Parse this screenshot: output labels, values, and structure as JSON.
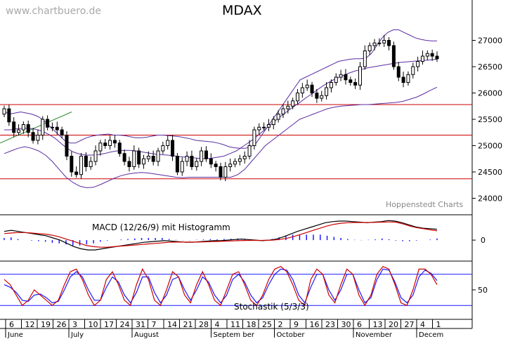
{
  "watermark": "www.chartbuero.de",
  "provider": "Hoppenstedt Charts",
  "colors": {
    "candle_body": "#000000",
    "bollinger": "#5a2ca0",
    "support_resistance": "#cc0000",
    "trendline": "#2e8b2e",
    "macd_line": "#000000",
    "macd_signal": "#cc0000",
    "macd_histogram": "#1a1aff",
    "stoch_k": "#cc0000",
    "stoch_d": "#1a1aff",
    "stoch_band": "#1a1aff"
  },
  "chart_data": [
    {
      "type": "candlestick",
      "title": "MDAX",
      "ylim": [
        23700,
        27700
      ],
      "y_ticks": [
        "24000",
        "24500",
        "25000",
        "25500",
        "26000",
        "26500",
        "27000"
      ],
      "horizontal_lines": [
        25780,
        25200,
        24370
      ],
      "date_ticks": [
        "6",
        "12",
        "19",
        "26",
        "3",
        "10",
        "17",
        "24",
        "31",
        "7",
        "14",
        "21",
        "28",
        "4",
        "11",
        "18",
        "25",
        "2",
        "9",
        "16",
        "23",
        "30",
        "6",
        "13",
        "20",
        "27",
        "4",
        "1"
      ],
      "month_labels": [
        "June",
        "July",
        "August",
        "Septem ber",
        "October",
        "November",
        "Decem"
      ],
      "close": [
        25700,
        25450,
        25250,
        25300,
        25400,
        25250,
        25100,
        25200,
        25500,
        25350,
        25350,
        25300,
        25200,
        24800,
        24500,
        24450,
        24800,
        24600,
        24700,
        24900,
        25050,
        25000,
        25100,
        25050,
        24850,
        24700,
        24600,
        24900,
        24650,
        24750,
        24800,
        24700,
        24900,
        25000,
        25100,
        24800,
        24500,
        24700,
        24800,
        24600,
        24700,
        24900,
        24750,
        24650,
        24600,
        24400,
        24600,
        24650,
        24700,
        24750,
        24800,
        25000,
        25300,
        25350,
        25350,
        25400,
        25500,
        25600,
        25700,
        25750,
        25850,
        26000,
        26100,
        26150,
        26000,
        25900,
        25950,
        26100,
        26200,
        26300,
        26350,
        26250,
        26200,
        26150,
        26500,
        26800,
        26900,
        26950,
        26950,
        27000,
        26900,
        26500,
        26300,
        26200,
        26350,
        26500,
        26600,
        26700,
        26750,
        26700,
        26650
      ],
      "bollinger_upper": [
        25650,
        25600,
        25620,
        25640,
        25620,
        25600,
        25560,
        25500,
        25400,
        25300,
        25200,
        25100,
        25050,
        25050,
        25100,
        25150,
        25180,
        25200,
        25210,
        25220,
        25200,
        25200,
        25190,
        25170,
        25150,
        25150,
        25160,
        25180,
        25200,
        25200,
        25190,
        25180,
        25170,
        25150,
        25130,
        25100,
        25090,
        25080,
        25070,
        25050,
        25020,
        24980,
        24960,
        24950,
        24950,
        24980,
        25050,
        25200,
        25350,
        25500,
        25650,
        25800,
        25950,
        26100,
        26250,
        26300,
        26350,
        26400,
        26450,
        26500,
        26550,
        26600,
        26620,
        26640,
        26650,
        26650,
        26660,
        26750,
        26900,
        27050,
        27150,
        27200,
        27200,
        27150,
        27100,
        27050,
        27020,
        27000,
        26990,
        26990
      ],
      "bollinger_mid": [
        25300,
        25300,
        25320,
        25330,
        25330,
        25310,
        25280,
        25220,
        25150,
        25050,
        24950,
        24880,
        24840,
        24820,
        24820,
        24830,
        24850,
        24880,
        24900,
        24910,
        24910,
        24900,
        24880,
        24860,
        24840,
        24830,
        24820,
        24810,
        24790,
        24780,
        24770,
        24760,
        24750,
        24760,
        24780,
        24800,
        24850,
        24900,
        24980,
        25060,
        25150,
        25250,
        25350,
        25450,
        25550,
        25640,
        25730,
        25810,
        25900,
        25980,
        26070,
        26150,
        26220,
        26280,
        26330,
        26380,
        26420,
        26450,
        26480,
        26500,
        26520,
        26540,
        26560,
        26580,
        26590,
        26600,
        26610,
        26620,
        26630,
        26640
      ],
      "bollinger_lower": [
        24850,
        24900,
        24950,
        24980,
        24950,
        24900,
        24820,
        24700,
        24550,
        24400,
        24300,
        24230,
        24200,
        24210,
        24260,
        24320,
        24380,
        24430,
        24460,
        24480,
        24490,
        24480,
        24460,
        24440,
        24420,
        24400,
        24390,
        24400,
        24400,
        24400,
        24400,
        24400,
        24400,
        24400,
        24450,
        24550,
        24700,
        24850,
        25000,
        25100,
        25200,
        25300,
        25400,
        25500,
        25550,
        25600,
        25650,
        25700,
        25730,
        25750,
        25760,
        25770,
        25780,
        25780,
        25790,
        25800,
        25810,
        25820,
        25840,
        25880,
        25920,
        25980,
        26050,
        26110
      ]
    },
    {
      "type": "line",
      "title": "MACD (12/26/9) mit Histogramm",
      "y_ticks": [
        "0"
      ],
      "ylim": [
        -180,
        220
      ],
      "macd": [
        80,
        90,
        80,
        70,
        60,
        50,
        40,
        20,
        0,
        -30,
        -60,
        -80,
        -90,
        -90,
        -80,
        -70,
        -60,
        -50,
        -40,
        -30,
        -20,
        -15,
        -10,
        -5,
        -10,
        -15,
        -20,
        -20,
        -15,
        -10,
        -5,
        -5,
        0,
        5,
        10,
        5,
        0,
        -5,
        0,
        10,
        30,
        55,
        80,
        100,
        120,
        140,
        160,
        170,
        175,
        175,
        170,
        165,
        160,
        165,
        170,
        180,
        175,
        160,
        140,
        120,
        110,
        105,
        100
      ],
      "signal": [
        60,
        65,
        70,
        70,
        65,
        60,
        55,
        45,
        30,
        10,
        -10,
        -30,
        -50,
        -60,
        -65,
        -65,
        -60,
        -55,
        -50,
        -45,
        -40,
        -35,
        -30,
        -25,
        -20,
        -18,
        -18,
        -18,
        -18,
        -16,
        -14,
        -12,
        -10,
        -8,
        -5,
        -3,
        -2,
        -3,
        -2,
        0,
        5,
        15,
        30,
        50,
        70,
        90,
        110,
        130,
        145,
        155,
        160,
        162,
        162,
        162,
        163,
        165,
        167,
        165,
        150,
        130,
        115,
        105,
        95,
        85
      ],
      "histogram": [
        20,
        25,
        10,
        0,
        -5,
        -10,
        -15,
        -25,
        -30,
        -40,
        -50,
        -50,
        -40,
        -30,
        -15,
        -5,
        0,
        5,
        10,
        15,
        20,
        20,
        20,
        20,
        10,
        3,
        -2,
        -2,
        3,
        6,
        9,
        7,
        10,
        13,
        15,
        8,
        2,
        -2,
        2,
        10,
        25,
        40,
        50,
        50,
        50,
        50,
        50,
        40,
        30,
        20,
        10,
        3,
        -2,
        3,
        7,
        15,
        8,
        -5,
        -10,
        -10,
        -5,
        0,
        5,
        15
      ]
    },
    {
      "type": "line",
      "title": "Stochastik (5/3/3)",
      "y_ticks": [
        "50"
      ],
      "ylim": [
        0,
        100
      ],
      "bands": [
        20,
        80
      ],
      "k": [
        70,
        60,
        40,
        20,
        30,
        50,
        40,
        30,
        20,
        30,
        60,
        85,
        90,
        70,
        40,
        20,
        30,
        70,
        85,
        60,
        30,
        20,
        60,
        90,
        70,
        30,
        20,
        50,
        85,
        75,
        40,
        25,
        60,
        85,
        60,
        30,
        20,
        50,
        80,
        85,
        60,
        30,
        20,
        40,
        70,
        90,
        95,
        85,
        60,
        30,
        20,
        70,
        90,
        80,
        40,
        25,
        60,
        90,
        80,
        40,
        20,
        40,
        80,
        95,
        90,
        60,
        25,
        20,
        50,
        90,
        90,
        80,
        60
      ],
      "d": [
        60,
        55,
        45,
        30,
        28,
        40,
        42,
        35,
        25,
        28,
        50,
        75,
        85,
        75,
        50,
        30,
        30,
        55,
        75,
        65,
        40,
        25,
        45,
        75,
        75,
        45,
        25,
        40,
        70,
        75,
        50,
        30,
        50,
        75,
        65,
        40,
        25,
        40,
        70,
        80,
        65,
        40,
        25,
        35,
        60,
        80,
        90,
        88,
        70,
        40,
        25,
        55,
        80,
        80,
        50,
        30,
        50,
        80,
        80,
        50,
        25,
        35,
        70,
        90,
        88,
        65,
        35,
        25,
        40,
        75,
        88,
        82,
        68
      ]
    }
  ]
}
